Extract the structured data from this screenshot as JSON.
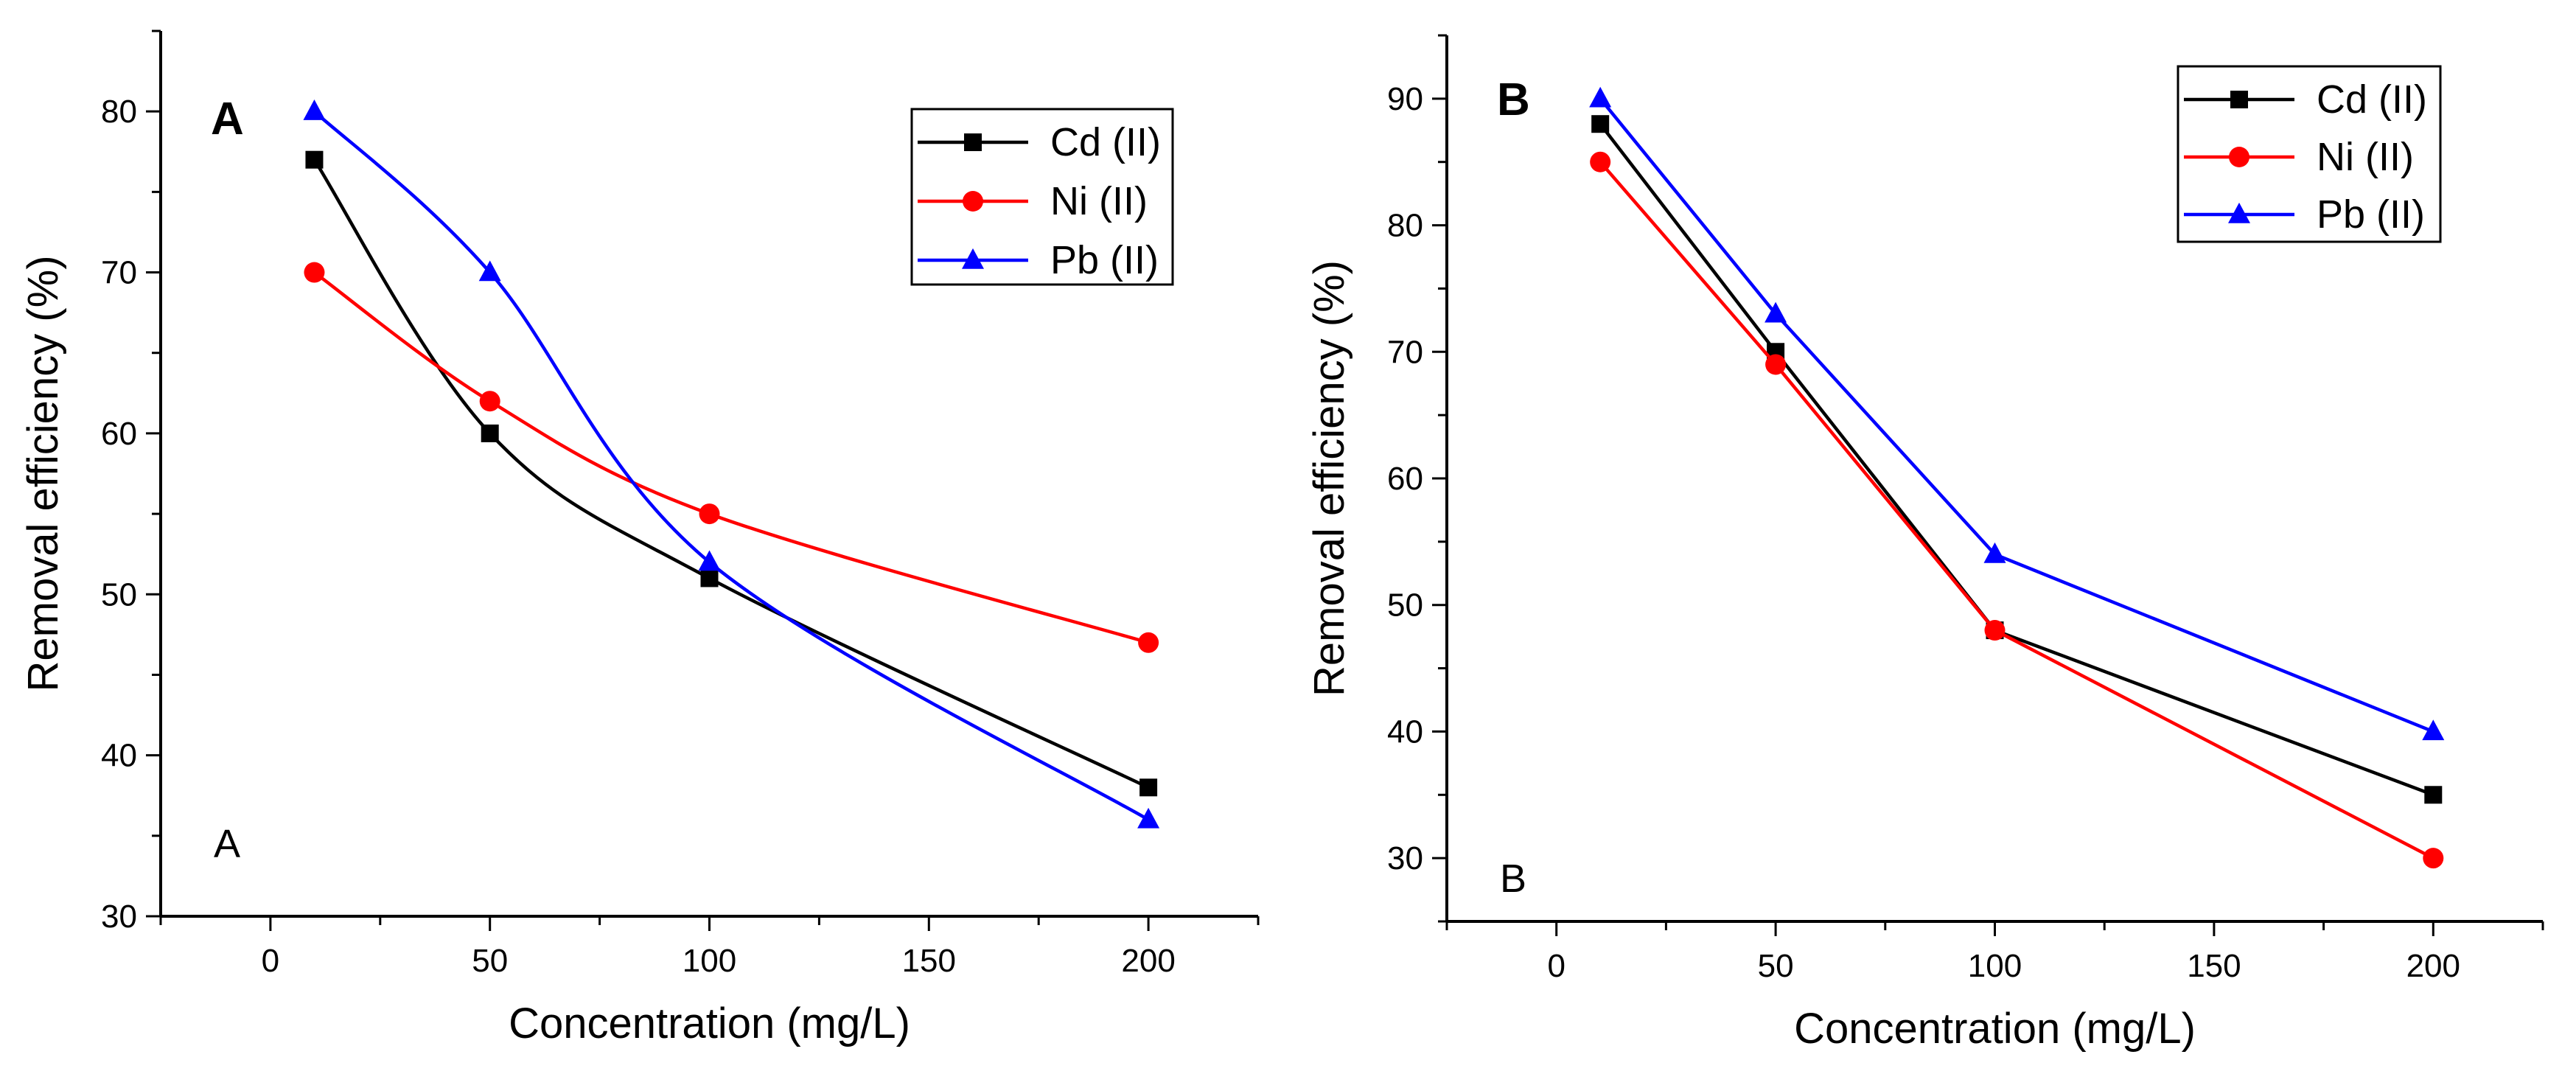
{
  "chart_data": [
    {
      "type": "line",
      "panel_label": "A",
      "corner_label": "A",
      "xlabel": "Concentration (mg/L)",
      "ylabel": "Removal efficiency (%)",
      "xlim": [
        -25,
        225
      ],
      "ylim": [
        30,
        85
      ],
      "xticks": [
        0,
        50,
        100,
        150,
        200
      ],
      "yticks": [
        30,
        40,
        50,
        60,
        70,
        80
      ],
      "xtick_labels": [
        "0",
        "50",
        "100",
        "150",
        "200"
      ],
      "ytick_labels": [
        "30",
        "40",
        "50",
        "60",
        "70",
        "80"
      ],
      "curve": "smooth",
      "legend_position": "top-right",
      "x": [
        10,
        50,
        100,
        200
      ],
      "series": [
        {
          "name": "Cd (II)",
          "values": [
            77,
            60,
            51,
            38
          ],
          "color": "#000000",
          "marker": "square"
        },
        {
          "name": "Ni (II)",
          "values": [
            70,
            62,
            55,
            47
          ],
          "color": "#ff0000",
          "marker": "circle"
        },
        {
          "name": "Pb (II)",
          "values": [
            80,
            70,
            52,
            36
          ],
          "color": "#0000ff",
          "marker": "triangle"
        }
      ]
    },
    {
      "type": "line",
      "panel_label": "B",
      "corner_label": "B",
      "xlabel": "Concentration (mg/L)",
      "ylabel": "Removal efficiency (%)",
      "xlim": [
        -25,
        225
      ],
      "ylim": [
        25,
        95
      ],
      "xticks": [
        0,
        50,
        100,
        150,
        200
      ],
      "yticks": [
        30,
        40,
        50,
        60,
        70,
        80,
        90
      ],
      "xtick_labels": [
        "0",
        "50",
        "100",
        "150",
        "200"
      ],
      "ytick_labels": [
        "30",
        "40",
        "50",
        "60",
        "70",
        "80",
        "90"
      ],
      "curve": "straight",
      "legend_position": "top-right",
      "x": [
        10,
        50,
        100,
        200
      ],
      "series": [
        {
          "name": "Cd (II)",
          "values": [
            88,
            70,
            48,
            35
          ],
          "color": "#000000",
          "marker": "square"
        },
        {
          "name": "Ni (II)",
          "values": [
            85,
            69,
            48,
            30
          ],
          "color": "#ff0000",
          "marker": "circle"
        },
        {
          "name": "Pb (II)",
          "values": [
            90,
            73,
            54,
            40
          ],
          "color": "#0000ff",
          "marker": "triangle"
        }
      ]
    }
  ]
}
